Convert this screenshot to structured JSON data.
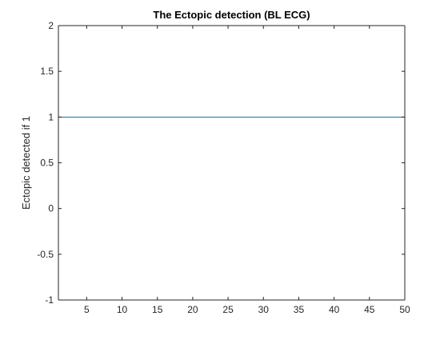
{
  "chart_data": {
    "type": "line",
    "title": "The Ectopic detection (BL ECG)",
    "xlabel": "",
    "ylabel": "Ectopic detected if 1",
    "xlim": [
      1,
      50
    ],
    "ylim": [
      -1,
      2
    ],
    "xticks": [
      5,
      10,
      15,
      20,
      25,
      30,
      35,
      40,
      45,
      50
    ],
    "yticks": [
      -1,
      -0.5,
      0,
      0.5,
      1,
      1.5,
      2
    ],
    "grid": false,
    "series": [
      {
        "color": "#0072bd",
        "x": [
          1,
          50
        ],
        "y": [
          1,
          1
        ]
      }
    ]
  }
}
